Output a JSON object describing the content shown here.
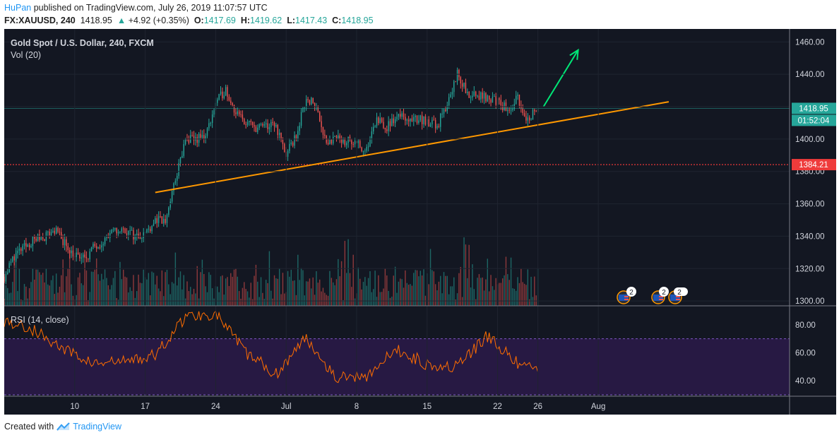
{
  "header": {
    "author": "HuPan",
    "published": "published on TradingView.com, July 26, 2019 11:07:57 UTC",
    "symbol": "FX:XAUUSD, 240",
    "last": "1418.95",
    "change": "+4.92 (+0.35%)",
    "o_label": "O:",
    "o": "1417.69",
    "h_label": "H:",
    "h": "1419.62",
    "l_label": "L:",
    "l": "1417.43",
    "c_label": "C:",
    "c": "1418.95"
  },
  "legend": {
    "title": "Gold Spot / U.S. Dollar, 240, FXCM",
    "vol": "Vol (20)",
    "rsi": "RSI (14, close)"
  },
  "price_scale": {
    "last_price_tag": "1418.95",
    "countdown_tag": "01:52:04",
    "hline_tag": "1384.21"
  },
  "events": [
    "2",
    "2",
    "2"
  ],
  "footer": {
    "created_with": "Created with",
    "brand": "TradingView"
  },
  "colors": {
    "background": "#131722",
    "up": "#26a69a",
    "down": "#ef5350",
    "trendline": "#ff9800",
    "arrow": "#00e676",
    "hline": "#ff3b3b",
    "rsi_line": "#ff6d00",
    "rsi_band": "#311b51"
  },
  "chart_data": [
    {
      "type": "candlestick",
      "title": "Gold Spot / U.S. Dollar, 240, FXCM",
      "xlabel": "",
      "ylabel": "",
      "ylim": [
        1297,
        1468
      ],
      "y_ticks": [
        1300,
        1320,
        1340,
        1360,
        1380,
        1400,
        1420,
        1440,
        1460
      ],
      "y_tick_labels": [
        "1300.00",
        "1320.00",
        "1340.00",
        "1360.00",
        "1380.00",
        "1400.00",
        "1420.00",
        "1440.00",
        "1460.00"
      ],
      "x_ticks": [
        "10",
        "17",
        "24",
        "Jul",
        "8",
        "15",
        "22",
        "26",
        "Aug"
      ],
      "x_tick_dates": [
        "2019-06-10",
        "2019-06-17",
        "2019-06-24",
        "2019-07-01",
        "2019-07-08",
        "2019-07-15",
        "2019-07-22",
        "2019-07-26",
        "2019-08-01"
      ],
      "x_range": [
        "2019-06-03",
        "2019-08-20"
      ],
      "ohlc_path": [
        [
          "2019-06-03",
          1315
        ],
        [
          "2019-06-04",
          1328
        ],
        [
          "2019-06-05",
          1333
        ],
        [
          "2019-06-06",
          1338
        ],
        [
          "2019-06-07",
          1340
        ],
        [
          "2019-06-08",
          1344
        ],
        [
          "2019-06-10",
          1328
        ],
        [
          "2019-06-11",
          1326
        ],
        [
          "2019-06-12",
          1334
        ],
        [
          "2019-06-13",
          1338
        ],
        [
          "2019-06-14",
          1343
        ],
        [
          "2019-06-15",
          1344
        ],
        [
          "2019-06-16",
          1340
        ],
        [
          "2019-06-17",
          1342
        ],
        [
          "2019-06-18",
          1350
        ],
        [
          "2019-06-19",
          1349
        ],
        [
          "2019-06-20",
          1375
        ],
        [
          "2019-06-21",
          1399
        ],
        [
          "2019-06-22",
          1400
        ],
        [
          "2019-06-23",
          1402
        ],
        [
          "2019-06-24",
          1422
        ],
        [
          "2019-06-25",
          1431
        ],
        [
          "2019-06-26",
          1416
        ],
        [
          "2019-06-27",
          1410
        ],
        [
          "2019-06-28",
          1407
        ],
        [
          "2019-06-29",
          1408
        ],
        [
          "2019-06-30",
          1408
        ],
        [
          "2019-07-01",
          1390
        ],
        [
          "2019-07-02",
          1402
        ],
        [
          "2019-07-03",
          1426
        ],
        [
          "2019-07-04",
          1420
        ],
        [
          "2019-07-05",
          1398
        ],
        [
          "2019-07-06",
          1400
        ],
        [
          "2019-07-07",
          1399
        ],
        [
          "2019-07-08",
          1398
        ],
        [
          "2019-07-09",
          1393
        ],
        [
          "2019-07-10",
          1412
        ],
        [
          "2019-07-11",
          1407
        ],
        [
          "2019-07-12",
          1414
        ],
        [
          "2019-07-13",
          1413
        ],
        [
          "2019-07-14",
          1412
        ],
        [
          "2019-07-15",
          1411
        ],
        [
          "2019-07-16",
          1408
        ],
        [
          "2019-07-17",
          1422
        ],
        [
          "2019-07-18",
          1440
        ],
        [
          "2019-07-19",
          1428
        ],
        [
          "2019-07-20",
          1426
        ],
        [
          "2019-07-21",
          1426
        ],
        [
          "2019-07-22",
          1423
        ],
        [
          "2019-07-23",
          1418
        ],
        [
          "2019-07-24",
          1425
        ],
        [
          "2019-07-25",
          1412
        ],
        [
          "2019-07-26",
          1418.95
        ]
      ],
      "last_price": 1418.95,
      "horizontal_line": 1384.21,
      "trendline": [
        [
          "2019-06-18",
          1367
        ],
        [
          "2019-08-08",
          1423
        ]
      ],
      "arrow": [
        [
          "2019-07-26",
          1420
        ],
        [
          "2019-07-30",
          1455
        ]
      ]
    },
    {
      "type": "bar",
      "title": "Vol (20)",
      "description": "volume histogram, colored by candle direction, highest spikes near Jul 7, Jul 19 and Jul 25"
    },
    {
      "type": "line",
      "title": "RSI (14, close)",
      "ylim": [
        29,
        92
      ],
      "y_ticks": [
        40,
        60,
        80
      ],
      "y_tick_labels": [
        "40.00",
        "60.00",
        "80.00"
      ],
      "bands": [
        30,
        70
      ],
      "x": [
        "2019-06-03",
        "2019-06-06",
        "2019-06-09",
        "2019-06-12",
        "2019-06-15",
        "2019-06-18",
        "2019-06-21",
        "2019-06-24",
        "2019-06-27",
        "2019-06-30",
        "2019-07-03",
        "2019-07-06",
        "2019-07-09",
        "2019-07-12",
        "2019-07-15",
        "2019-07-18",
        "2019-07-21",
        "2019-07-24",
        "2019-07-26"
      ],
      "values": [
        83,
        76,
        62,
        52,
        54,
        58,
        86,
        88,
        60,
        45,
        71,
        42,
        44,
        62,
        52,
        50,
        72,
        52,
        47
      ]
    }
  ]
}
